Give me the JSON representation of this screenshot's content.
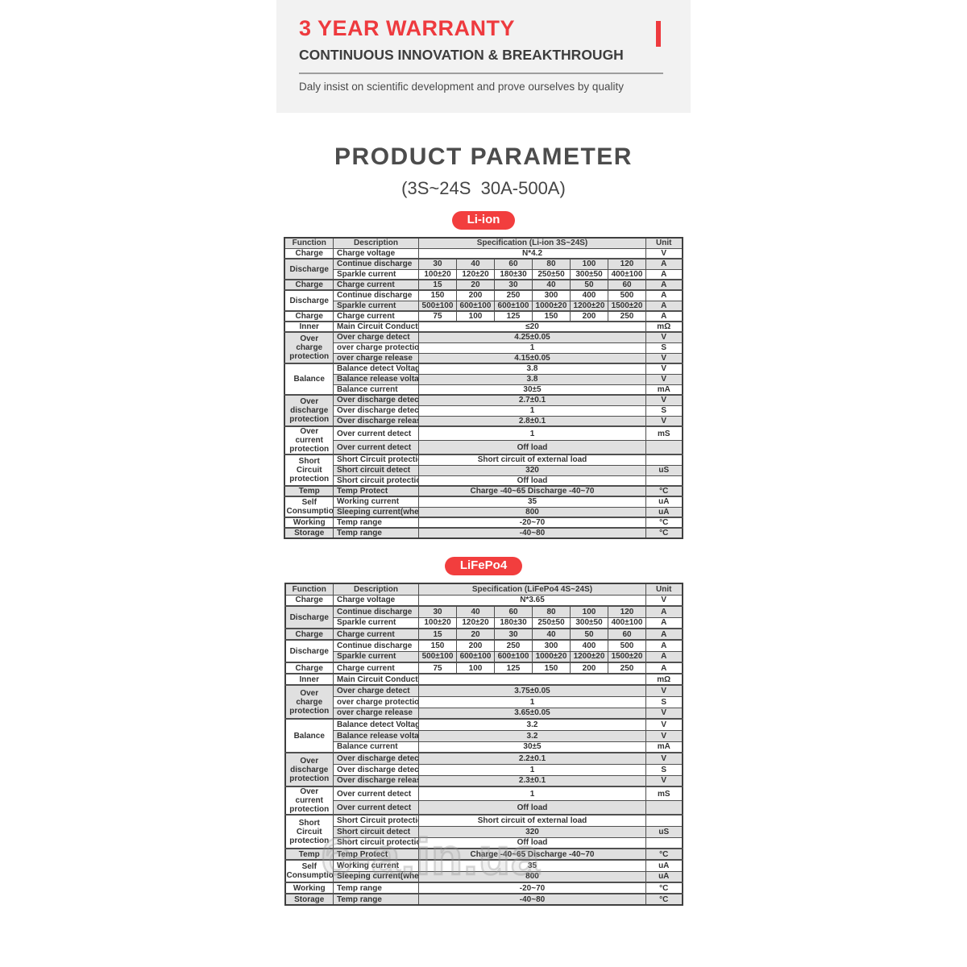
{
  "hero": {
    "title": "3 YEAR WARRANTY",
    "subtitle": "CONTINUOUS INNOVATION & BREAKTHROUGH",
    "tagline": "Daly insist on scientific development and prove ourselves by quality"
  },
  "page": {
    "title": "PRODUCT PARAMETER",
    "subtitle": "(3S~24S  30A-500A)"
  },
  "colors": {
    "accent": "#ee3a3e",
    "stripe": "#e0e0e0",
    "band": "#f2f2f2"
  },
  "watermark": "б-a.in.ua",
  "tables": [
    {
      "badge": "Li-ion",
      "headers": [
        "Function",
        "Description",
        "Specification  (Li-ion 3S~24S)",
        "Unit"
      ],
      "rows": [
        {
          "group": {
            "label": "Charge",
            "rowspan": 1
          },
          "description": "Charge voltage",
          "value": "N*4.2",
          "unit": "V",
          "shade": false
        },
        {
          "group": {
            "label": "Discharge",
            "rowspan": 2
          },
          "description": "Continue discharge",
          "values": [
            "30",
            "40",
            "60",
            "80",
            "100",
            "120"
          ],
          "unit": "A",
          "shade": true
        },
        {
          "description": "Sparkle current",
          "values": [
            "100±20",
            "120±20",
            "180±30",
            "250±50",
            "300±50",
            "400±100"
          ],
          "unit": "A",
          "shade": false
        },
        {
          "group": {
            "label": "Charge",
            "rowspan": 1
          },
          "description": "Charge current",
          "values": [
            "15",
            "20",
            "30",
            "40",
            "50",
            "60"
          ],
          "unit": "A",
          "shade": true
        },
        {
          "group": {
            "label": "Discharge",
            "rowspan": 2
          },
          "description": "Continue discharge",
          "values": [
            "150",
            "200",
            "250",
            "300",
            "400",
            "500"
          ],
          "unit": "A",
          "shade": false
        },
        {
          "description": "Sparkle current",
          "values": [
            "500±100",
            "600±100",
            "600±100",
            "1000±20",
            "1200±20",
            "1500±20"
          ],
          "unit": "A",
          "shade": true
        },
        {
          "group": {
            "label": "Charge",
            "rowspan": 1
          },
          "description": "Charge current",
          "values": [
            "75",
            "100",
            "125",
            "150",
            "200",
            "250"
          ],
          "unit": "A",
          "shade": false
        },
        {
          "group": {
            "label": "Inner",
            "rowspan": 1
          },
          "description": "Main Circuit Conduct",
          "value": "≤20",
          "unit": "mΩ",
          "shade": false
        },
        {
          "group": {
            "label": "Over charge protection",
            "rowspan": 3
          },
          "description": "Over charge detect",
          "value": "4.25±0.05",
          "unit": "V",
          "shade": true
        },
        {
          "description": "over charge protection",
          "value": "1",
          "unit": "S",
          "shade": false
        },
        {
          "description": "over charge release",
          "value": "4.15±0.05",
          "unit": "V",
          "shade": true
        },
        {
          "group": {
            "label": "Balance",
            "rowspan": 3
          },
          "description": "Balance detect Voltage",
          "value": "3.8",
          "unit": "V",
          "shade": false
        },
        {
          "description": "Balance release voltage",
          "value": "3.8",
          "unit": "V",
          "shade": true
        },
        {
          "description": "Balance current",
          "value": "30±5",
          "unit": "mA",
          "shade": false
        },
        {
          "group": {
            "label": "Over discharge protection",
            "rowspan": 3
          },
          "description": "Over discharge detect",
          "value": "2.7±0.1",
          "unit": "V",
          "shade": true
        },
        {
          "description": "Over discharge detect",
          "value": "1",
          "unit": "S",
          "shade": false
        },
        {
          "description": "Over discharge release",
          "value": "2.8±0.1",
          "unit": "V",
          "shade": true
        },
        {
          "group": {
            "label": "Over current protection",
            "rowspan": 2
          },
          "description": "Over current detect",
          "value": "1",
          "unit": "mS",
          "shade": false
        },
        {
          "description": "Over current detect",
          "value": "Off load",
          "unit": "",
          "shade": true
        },
        {
          "group": {
            "label": "Short Circuit protection",
            "rowspan": 3
          },
          "description": "Short Circuit protection",
          "value": "Short circuit of external load",
          "unit": "",
          "shade": false
        },
        {
          "description": "Short circuit detect",
          "value": "320",
          "unit": "uS",
          "shade": true
        },
        {
          "description": "Short circuit protection",
          "value": "Off load",
          "unit": "",
          "shade": false
        },
        {
          "group": {
            "label": "Temp",
            "rowspan": 1
          },
          "description": "Temp Protect",
          "value": "Charge -40~65 Discharge -40~70",
          "unit": "°C",
          "shade": true
        },
        {
          "group": {
            "label": "Self Consumptio",
            "rowspan": 2
          },
          "description": "Working current",
          "value": "35",
          "unit": "uA",
          "shade": false
        },
        {
          "description": "Sleeping current(when",
          "value": "800",
          "unit": "uA",
          "shade": true
        },
        {
          "group": {
            "label": "Working",
            "rowspan": 1
          },
          "description": "Temp range",
          "value": "-20~70",
          "unit": "°C",
          "shade": false
        },
        {
          "group": {
            "label": "Storage",
            "rowspan": 1
          },
          "description": "Temp range",
          "value": "-40~80",
          "unit": "°C",
          "shade": true
        }
      ]
    },
    {
      "badge": "LiFePo4",
      "headers": [
        "Function",
        "Description",
        "Specification  (LiFePo4 4S~24S)",
        "Unit"
      ],
      "rows": [
        {
          "group": {
            "label": "Charge",
            "rowspan": 1
          },
          "description": "Charge voltage",
          "value": "N*3.65",
          "unit": "V",
          "shade": false
        },
        {
          "group": {
            "label": "Discharge",
            "rowspan": 2
          },
          "description": "Continue discharge",
          "values": [
            "30",
            "40",
            "60",
            "80",
            "100",
            "120"
          ],
          "unit": "A",
          "shade": true
        },
        {
          "description": "Sparkle current",
          "values": [
            "100±20",
            "120±20",
            "180±30",
            "250±50",
            "300±50",
            "400±100"
          ],
          "unit": "A",
          "shade": false
        },
        {
          "group": {
            "label": "Charge",
            "rowspan": 1
          },
          "description": "Charge current",
          "values": [
            "15",
            "20",
            "30",
            "40",
            "50",
            "60"
          ],
          "unit": "A",
          "shade": true
        },
        {
          "group": {
            "label": "Discharge",
            "rowspan": 2
          },
          "description": "Continue discharge",
          "values": [
            "150",
            "200",
            "250",
            "300",
            "400",
            "500"
          ],
          "unit": "A",
          "shade": false
        },
        {
          "description": "Sparkle current",
          "values": [
            "500±100",
            "600±100",
            "600±100",
            "1000±20",
            "1200±20",
            "1500±20"
          ],
          "unit": "A",
          "shade": true
        },
        {
          "group": {
            "label": "Charge",
            "rowspan": 1
          },
          "description": "Charge current",
          "values": [
            "75",
            "100",
            "125",
            "150",
            "200",
            "250"
          ],
          "unit": "A",
          "shade": false
        },
        {
          "group": {
            "label": "Inner",
            "rowspan": 1
          },
          "description": "Main Circuit Conduct",
          "value": "",
          "unit": "mΩ",
          "shade": false
        },
        {
          "group": {
            "label": "Over charge protection",
            "rowspan": 3
          },
          "description": "Over charge detect",
          "value": "3.75±0.05",
          "unit": "V",
          "shade": true
        },
        {
          "description": "over charge protection",
          "value": "1",
          "unit": "S",
          "shade": false
        },
        {
          "description": "over charge release",
          "value": "3.65±0.05",
          "unit": "V",
          "shade": true
        },
        {
          "group": {
            "label": "Balance",
            "rowspan": 3
          },
          "description": "Balance detect Voltage",
          "value": "3.2",
          "unit": "V",
          "shade": false
        },
        {
          "description": "Balance release voltage",
          "value": "3.2",
          "unit": "V",
          "shade": true
        },
        {
          "description": "Balance current",
          "value": "30±5",
          "unit": "mA",
          "shade": false
        },
        {
          "group": {
            "label": "Over discharge protection",
            "rowspan": 3
          },
          "description": "Over discharge detect",
          "value": "2.2±0.1",
          "unit": "V",
          "shade": true
        },
        {
          "description": "Over discharge detect",
          "value": "1",
          "unit": "S",
          "shade": false
        },
        {
          "description": "Over discharge release",
          "value": "2.3±0.1",
          "unit": "V",
          "shade": true
        },
        {
          "group": {
            "label": "Over current protection",
            "rowspan": 2
          },
          "description": "Over current detect",
          "value": "1",
          "unit": "mS",
          "shade": false
        },
        {
          "description": "Over current detect",
          "value": "Off load",
          "unit": "",
          "shade": true
        },
        {
          "group": {
            "label": "Short Circuit protection",
            "rowspan": 3
          },
          "description": "Short Circuit protection",
          "value": "Short circuit of external load",
          "unit": "",
          "shade": false
        },
        {
          "description": "Short circuit detect",
          "value": "320",
          "unit": "uS",
          "shade": true
        },
        {
          "description": "Short circuit protection",
          "value": "Off load",
          "unit": "",
          "shade": false
        },
        {
          "group": {
            "label": "Temp",
            "rowspan": 1
          },
          "description": "Temp Protect",
          "value": "Charge -40~65 Discharge -40~70",
          "unit": "°C",
          "shade": true
        },
        {
          "group": {
            "label": "Self Consumptio",
            "rowspan": 2
          },
          "description": "Working current",
          "value": "35",
          "unit": "uA",
          "shade": false
        },
        {
          "description": "Sleeping current(when",
          "value": "800",
          "unit": "uA",
          "shade": true
        },
        {
          "group": {
            "label": "Working",
            "rowspan": 1
          },
          "description": "Temp range",
          "value": "-20~70",
          "unit": "°C",
          "shade": false
        },
        {
          "group": {
            "label": "Storage",
            "rowspan": 1
          },
          "description": "Temp range",
          "value": "-40~80",
          "unit": "°C",
          "shade": true
        }
      ]
    }
  ]
}
